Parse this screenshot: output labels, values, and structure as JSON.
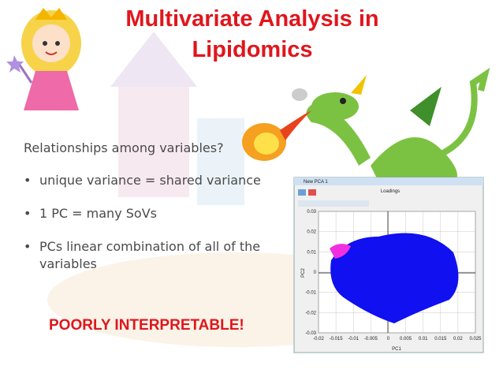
{
  "title": {
    "lines": [
      "Multivariate Analysis in",
      "Lipidomics"
    ]
  },
  "body": {
    "lead": "Relationships among variables?",
    "bullets": [
      "unique variance = shared variance",
      "1 PC = many SoVs",
      "PCs linear combination of all of the",
      "variables"
    ]
  },
  "callout": "POORLY INTERPRETABLE!",
  "inset": {
    "window_title": "New PCA 1",
    "plot_title": "Loadings",
    "x_label": "PC1",
    "y_label": "PC2",
    "x_ticks": [
      "-0.02",
      "-0.015",
      "-0.01",
      "-0.005",
      "0",
      "0.005",
      "0.01",
      "0.015",
      "0.02",
      "0.025"
    ],
    "y_ticks": [
      "0.03",
      "0.02",
      "0.01",
      "0",
      "-0.01",
      "-0.02",
      "-0.03"
    ]
  }
}
